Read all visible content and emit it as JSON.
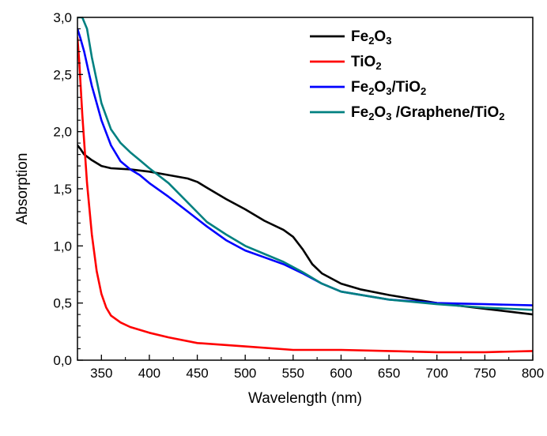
{
  "chart_data": {
    "type": "line",
    "title": "",
    "xlabel": "Wavelength (nm)",
    "ylabel": "Absorption",
    "xlim": [
      325,
      800
    ],
    "ylim": [
      0.0,
      3.0
    ],
    "x_ticks": [
      350,
      400,
      450,
      500,
      550,
      600,
      650,
      700,
      750,
      800
    ],
    "x_tick_labels": [
      "350",
      "400",
      "450",
      "500",
      "550",
      "600",
      "650",
      "700",
      "750",
      "800"
    ],
    "y_ticks": [
      0.0,
      0.5,
      1.0,
      1.5,
      2.0,
      2.5,
      3.0
    ],
    "y_tick_labels": [
      "0,0",
      "0,5",
      "1,0",
      "1,5",
      "2,0",
      "2,5",
      "3,0"
    ],
    "grid": false,
    "legend_position": "top-right",
    "series": [
      {
        "name": "Fe2O3",
        "label_parts": [
          [
            "Fe",
            "n"
          ],
          [
            "2",
            "sub"
          ],
          [
            "O",
            "n"
          ],
          [
            "3",
            "sub"
          ]
        ],
        "color": "#000000",
        "x": [
          325,
          328,
          332,
          340,
          350,
          360,
          380,
          400,
          420,
          440,
          450,
          460,
          480,
          500,
          520,
          540,
          550,
          560,
          570,
          580,
          600,
          620,
          650,
          700,
          750,
          780,
          800
        ],
        "y": [
          1.88,
          1.85,
          1.8,
          1.75,
          1.7,
          1.68,
          1.67,
          1.65,
          1.62,
          1.59,
          1.56,
          1.51,
          1.41,
          1.32,
          1.22,
          1.14,
          1.08,
          0.97,
          0.84,
          0.76,
          0.67,
          0.62,
          0.57,
          0.5,
          0.45,
          0.42,
          0.4
        ]
      },
      {
        "name": "TiO2",
        "label_parts": [
          [
            "TiO",
            "n"
          ],
          [
            "2",
            "sub"
          ]
        ],
        "color": "#ff0000",
        "x": [
          325,
          327,
          330,
          335,
          340,
          345,
          350,
          355,
          360,
          370,
          380,
          400,
          420,
          450,
          500,
          550,
          600,
          650,
          700,
          750,
          800
        ],
        "y": [
          2.82,
          2.6,
          2.15,
          1.55,
          1.1,
          0.78,
          0.58,
          0.46,
          0.39,
          0.33,
          0.29,
          0.24,
          0.2,
          0.15,
          0.12,
          0.09,
          0.09,
          0.08,
          0.07,
          0.07,
          0.08
        ]
      },
      {
        "name": "Fe2O3/TiO2",
        "label_parts": [
          [
            "Fe",
            "n"
          ],
          [
            "2",
            "sub"
          ],
          [
            "O",
            "n"
          ],
          [
            "3",
            "sub"
          ],
          [
            "/TiO",
            "n"
          ],
          [
            "2",
            "sub"
          ]
        ],
        "color": "#0000ff",
        "x": [
          325,
          328,
          332,
          336,
          340,
          345,
          350,
          360,
          370,
          380,
          390,
          400,
          420,
          440,
          460,
          480,
          500,
          520,
          540,
          560,
          580,
          600,
          650,
          700,
          750,
          800
        ],
        "y": [
          2.9,
          2.82,
          2.7,
          2.55,
          2.4,
          2.25,
          2.1,
          1.88,
          1.74,
          1.67,
          1.62,
          1.55,
          1.43,
          1.3,
          1.17,
          1.05,
          0.96,
          0.9,
          0.84,
          0.76,
          0.67,
          0.6,
          0.53,
          0.5,
          0.49,
          0.48
        ]
      },
      {
        "name": "Fe2O3 /Graphene/TiO2",
        "label_parts": [
          [
            "Fe",
            "n"
          ],
          [
            "2",
            "sub"
          ],
          [
            "O",
            "n"
          ],
          [
            "3",
            "sub"
          ],
          [
            " /Graphene/TiO",
            "n"
          ],
          [
            "2",
            "sub"
          ]
        ],
        "color": "#008080",
        "x": [
          325,
          330,
          335,
          340,
          345,
          350,
          360,
          370,
          380,
          390,
          400,
          420,
          440,
          460,
          480,
          500,
          520,
          540,
          560,
          580,
          600,
          650,
          700,
          750,
          800
        ],
        "y": [
          3.0,
          3.0,
          2.9,
          2.65,
          2.45,
          2.25,
          2.02,
          1.9,
          1.82,
          1.75,
          1.68,
          1.55,
          1.38,
          1.21,
          1.1,
          1.0,
          0.93,
          0.86,
          0.77,
          0.67,
          0.6,
          0.53,
          0.49,
          0.46,
          0.44
        ]
      }
    ]
  }
}
